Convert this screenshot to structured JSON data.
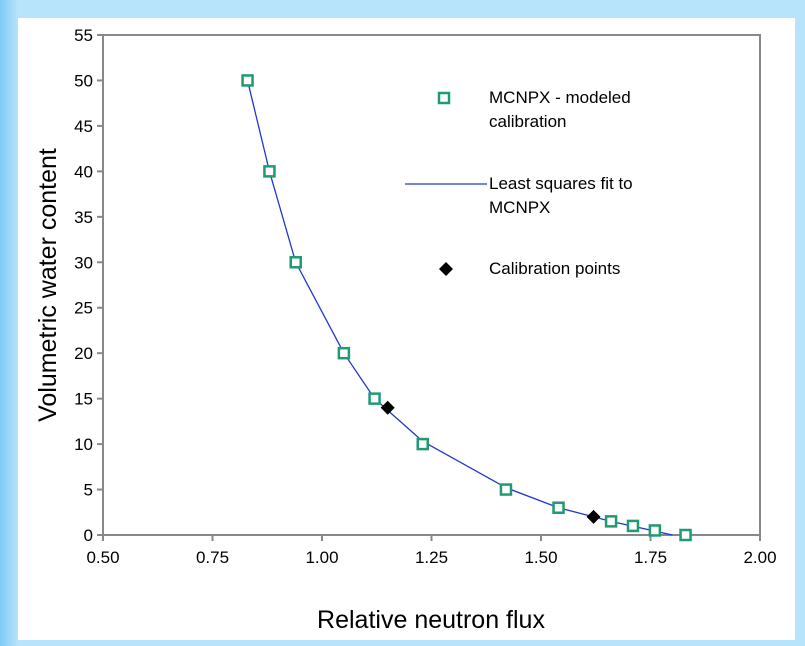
{
  "chart_data": {
    "type": "scatter",
    "xlabel": "Relative neutron flux",
    "ylabel": "Volumetric water content",
    "xlim": [
      0.5,
      2.0
    ],
    "xticks": [
      {
        "value": 0.5,
        "label": "0.50"
      },
      {
        "value": 0.75,
        "label": "0.75"
      },
      {
        "value": 1.0,
        "label": "1.00"
      },
      {
        "value": 1.25,
        "label": "1.25"
      },
      {
        "value": 1.5,
        "label": "1.50"
      },
      {
        "value": 1.75,
        "label": "1.75"
      },
      {
        "value": 2.0,
        "label": "2.00"
      }
    ],
    "ylim": [
      0,
      55
    ],
    "yticks": [
      0,
      5,
      10,
      15,
      20,
      25,
      30,
      35,
      40,
      45,
      50,
      55
    ],
    "series": [
      {
        "name": "MCNPX - modeled calibration",
        "color": "#1f9a72",
        "marker": "square",
        "x": [
          0.83,
          0.88,
          0.94,
          1.05,
          1.12,
          1.23,
          1.42,
          1.54,
          1.66,
          1.71,
          1.76,
          1.83
        ],
        "values": [
          50,
          40,
          30,
          20,
          15,
          10,
          5,
          3,
          1.5,
          1,
          0.5,
          0
        ]
      },
      {
        "name": "Least squares fit to MCNPX",
        "color": "#2038d0",
        "marker": "line",
        "x": [
          0.83,
          0.88,
          0.94,
          1.05,
          1.12,
          1.23,
          1.42,
          1.54,
          1.66,
          1.8
        ],
        "values": [
          50,
          40,
          30,
          20,
          15,
          10.3,
          5.2,
          3,
          1.5,
          0
        ]
      },
      {
        "name": "Calibration points",
        "color": "#000000",
        "marker": "diamond",
        "x": [
          1.15,
          1.62
        ],
        "values": [
          14,
          2
        ]
      }
    ]
  }
}
